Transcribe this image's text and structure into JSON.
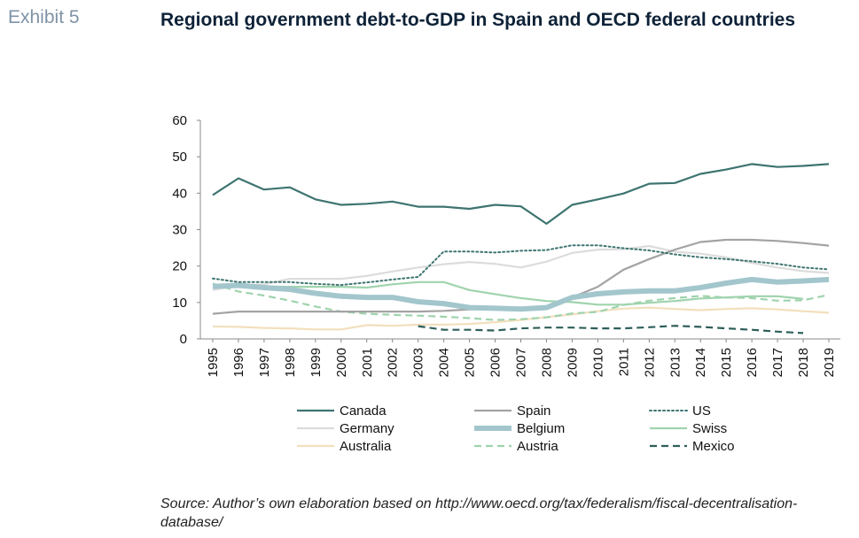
{
  "header": {
    "exhibit": "Exhibit 5",
    "title": "Regional government debt-to-GDP in Spain and OECD federal countries"
  },
  "footer": {
    "source": "Source: Author’s own elaboration based on http://www.oecd.org/tax/federalism/fiscal-decentralisation-database/"
  },
  "chart_data": {
    "type": "line",
    "title": "Regional government debt-to-GDP in Spain and OECD federal countries",
    "xlabel": "",
    "ylabel": "",
    "ylim": [
      0,
      60
    ],
    "yticks": [
      0,
      10,
      20,
      30,
      40,
      50,
      60
    ],
    "grid": false,
    "legend_position": "bottom",
    "x": [
      "1995",
      "1996",
      "1997",
      "1998",
      "1999",
      "2000",
      "2001",
      "2002",
      "2003",
      "2004",
      "2005",
      "2006",
      "2007",
      "2008",
      "2009",
      "2010",
      "2011",
      "2012",
      "2013",
      "2014",
      "2015",
      "2016",
      "2017",
      "2018",
      "2019"
    ],
    "series": [
      {
        "name": "Canada",
        "color": "#3d7470",
        "style": "solid",
        "values": [
          39.5,
          44.1,
          41.0,
          41.6,
          38.3,
          36.8,
          37.1,
          37.7,
          36.3,
          36.3,
          35.7,
          36.8,
          36.4,
          31.6,
          36.8,
          38.3,
          39.9,
          42.6,
          42.8,
          45.3,
          46.5,
          48.0,
          47.2,
          47.5,
          48.0
        ]
      },
      {
        "name": "Spain",
        "color": "#a3a3a3",
        "style": "solid",
        "values": [
          6.9,
          7.5,
          7.5,
          7.5,
          7.5,
          7.5,
          7.5,
          7.5,
          7.5,
          7.7,
          8.1,
          8.1,
          8.1,
          8.7,
          11.4,
          14.3,
          19.0,
          21.9,
          24.5,
          26.6,
          27.2,
          27.2,
          26.9,
          26.3,
          25.6
        ]
      },
      {
        "name": "US",
        "color": "#3d7470",
        "style": "dotted",
        "values": [
          16.6,
          15.6,
          15.6,
          15.6,
          15.1,
          14.8,
          15.5,
          16.3,
          17.0,
          24.0,
          24.0,
          23.7,
          24.2,
          24.4,
          25.7,
          25.7,
          24.9,
          24.3,
          23.2,
          22.4,
          21.9,
          21.3,
          20.6,
          19.6,
          19.1
        ]
      },
      {
        "name": "Germany",
        "color": "#dcdcdc",
        "style": "solid",
        "values": [
          13.4,
          14.7,
          15.0,
          16.5,
          16.5,
          16.5,
          17.3,
          18.5,
          19.6,
          20.5,
          21.1,
          20.6,
          19.6,
          21.2,
          23.6,
          24.5,
          24.6,
          25.5,
          23.9,
          23.4,
          22.4,
          20.9,
          19.6,
          18.6,
          18.1
        ]
      },
      {
        "name": "Belgium",
        "color": "#a3c6cd",
        "style": "thick",
        "values": [
          14.4,
          14.7,
          14.1,
          13.6,
          12.5,
          11.7,
          11.4,
          11.4,
          10.2,
          9.7,
          8.6,
          8.4,
          8.2,
          8.6,
          11.4,
          12.4,
          12.9,
          13.2,
          13.2,
          14.1,
          15.3,
          16.3,
          15.6,
          15.9,
          16.3
        ]
      },
      {
        "name": "Swiss",
        "color": "#9fd3ad",
        "style": "solid",
        "values": [
          14.6,
          14.6,
          14.4,
          14.3,
          14.3,
          14.3,
          14.1,
          15.0,
          15.6,
          15.6,
          13.4,
          12.3,
          11.2,
          10.4,
          10.1,
          9.4,
          9.4,
          9.9,
          10.4,
          11.1,
          11.4,
          11.7,
          11.7,
          11.0,
          null
        ]
      },
      {
        "name": "Australia",
        "color": "#f2dfbd",
        "style": "solid",
        "values": [
          3.4,
          3.3,
          3.0,
          2.9,
          2.6,
          2.6,
          3.8,
          3.6,
          3.9,
          3.9,
          4.1,
          4.6,
          5.2,
          6.0,
          6.7,
          7.6,
          8.3,
          8.6,
          8.2,
          7.9,
          8.2,
          8.4,
          8.1,
          7.6,
          7.2
        ]
      },
      {
        "name": "Austria",
        "color": "#9fd3ad",
        "style": "dashed",
        "values": [
          15.2,
          13.0,
          11.9,
          10.5,
          8.9,
          7.5,
          6.9,
          6.6,
          6.4,
          6.1,
          5.7,
          5.2,
          5.4,
          5.9,
          7.0,
          7.4,
          9.3,
          10.5,
          11.2,
          11.8,
          11.4,
          11.2,
          10.5,
          10.6,
          12.1
        ]
      },
      {
        "name": "Mexico",
        "color": "#2e5e5a",
        "style": "dashed",
        "values": [
          null,
          null,
          null,
          null,
          null,
          null,
          null,
          null,
          3.5,
          2.5,
          2.5,
          2.3,
          2.9,
          3.1,
          3.1,
          2.9,
          2.9,
          3.2,
          3.6,
          3.3,
          2.9,
          2.5,
          2.0,
          1.6,
          null
        ]
      }
    ]
  }
}
